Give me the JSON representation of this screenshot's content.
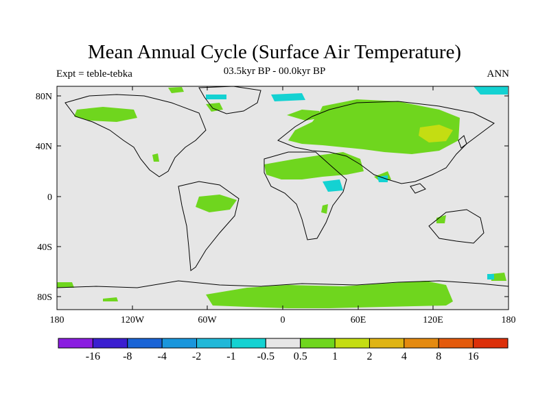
{
  "title": "Mean Annual Cycle (Surface Air Temperature)",
  "subtitle_left": "Expt = teble-tebka",
  "subtitle_center": "03.5kyr BP - 00.0kyr BP",
  "subtitle_right": "ANN",
  "axes": {
    "y_ticks": [
      "80N",
      "40N",
      "0",
      "40S",
      "80S"
    ],
    "x_ticks": [
      "180",
      "120W",
      "60W",
      "0",
      "60E",
      "120E",
      "180"
    ]
  },
  "colorbar": {
    "labels": [
      "-16",
      "-8",
      "-4",
      "-2",
      "-1",
      "-0.5",
      "0.5",
      "1",
      "2",
      "4",
      "8",
      "16"
    ],
    "colors": [
      "#8a1de0",
      "#3b1fd0",
      "#1a64d6",
      "#1a96dc",
      "#21b8d8",
      "#14d2d2",
      "#e6e6e6",
      "#6fd61e",
      "#c4dd12",
      "#dfb414",
      "#e48a10",
      "#e35a0c",
      "#dc300a"
    ]
  },
  "colors": {
    "background": "#e6e6e6",
    "warm_1": "#6fd61e",
    "warm_2": "#c4dd12",
    "cool_1": "#14d2d2"
  }
}
